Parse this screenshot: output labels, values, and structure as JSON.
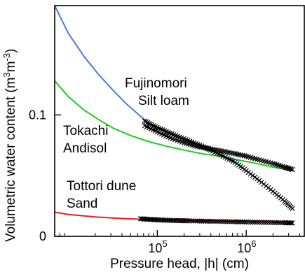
{
  "chart_data": {
    "type": "line",
    "title": "",
    "xlabel": "Pressure head, |h| (cm)",
    "ylabel": "Volumetric water content (m3m-3)",
    "ylabel_parts": {
      "main": "Volumetric water content (m",
      "sup1": "3",
      "mid": "m",
      "sup2": "-3",
      "end": ")"
    },
    "xscale": "log",
    "xlim": [
      7000,
      4500000
    ],
    "ylim": [
      0,
      0.19
    ],
    "xticks": [
      {
        "value": 100000,
        "base": "10",
        "exp": "5"
      },
      {
        "value": 1000000,
        "base": "10",
        "exp": "6"
      }
    ],
    "yticks": [
      {
        "value": 0,
        "label": "0"
      },
      {
        "value": 0.1,
        "label": "0.1"
      }
    ],
    "grid": false,
    "annotations": [
      {
        "id": "fujinomori-name",
        "text": "Fujinomori"
      },
      {
        "id": "fujinomori-texture",
        "text": "Silt loam"
      },
      {
        "id": "tokachi-name",
        "text": "Tokachi"
      },
      {
        "id": "tokachi-texture",
        "text": "Andisol"
      },
      {
        "id": "tottori-name",
        "text": "Tottori dune"
      },
      {
        "id": "tottori-texture",
        "text": "Sand"
      }
    ],
    "series": [
      {
        "kind": "curve",
        "color": "#4a78e0",
        "x": [
          7000,
          10000,
          15000,
          22000,
          32000,
          45000,
          62000,
          75000
        ],
        "y": [
          0.19,
          0.167,
          0.148,
          0.133,
          0.12,
          0.109,
          0.1,
          0.095
        ]
      },
      {
        "kind": "curve",
        "color": "#22cc22",
        "x": [
          7000,
          10000,
          15000,
          22000,
          32000,
          50000,
          80000,
          130000,
          200000,
          320000,
          500000,
          800000,
          1300000,
          2000000,
          3300000
        ],
        "y": [
          0.128,
          0.115,
          0.104,
          0.096,
          0.089,
          0.083,
          0.078,
          0.074,
          0.071,
          0.068,
          0.066,
          0.063,
          0.06,
          0.057,
          0.054
        ]
      },
      {
        "kind": "curve",
        "color": "#e02020",
        "x": [
          7000,
          10000,
          20000,
          40000,
          70000,
          150000,
          400000,
          1000000,
          3300000
        ],
        "y": [
          0.02,
          0.018,
          0.016,
          0.0147,
          0.014,
          0.0135,
          0.0128,
          0.0122,
          0.0115
        ]
      },
      {
        "kind": "markers",
        "color": "#000000",
        "x": [
          72000,
          90000,
          120000,
          160000,
          220000,
          300000,
          400000,
          550000,
          750000,
          1000000,
          1400000,
          2000000,
          2700000,
          3300000
        ],
        "y": [
          0.095,
          0.091,
          0.087,
          0.083,
          0.079,
          0.075,
          0.071,
          0.066,
          0.061,
          0.054,
          0.046,
          0.037,
          0.029,
          0.023
        ]
      },
      {
        "kind": "markers",
        "color": "#000000",
        "x": [
          72000,
          100000,
          140000,
          200000,
          280000,
          400000,
          550000,
          750000,
          1000000,
          1400000,
          2000000,
          2700000,
          3300000
        ],
        "y": [
          0.091,
          0.086,
          0.081,
          0.077,
          0.074,
          0.072,
          0.07,
          0.068,
          0.066,
          0.063,
          0.06,
          0.057,
          0.055
        ]
      },
      {
        "kind": "markers",
        "color": "#000000",
        "x": [
          65000,
          80000,
          100000,
          130000,
          170000,
          220000,
          300000,
          400000,
          550000,
          750000,
          1000000,
          1400000,
          2000000,
          2700000,
          3300000
        ],
        "y": [
          0.0145,
          0.014,
          0.0136,
          0.0132,
          0.013,
          0.0128,
          0.0126,
          0.0124,
          0.0122,
          0.012,
          0.0118,
          0.0116,
          0.0114,
          0.0112,
          0.011
        ]
      }
    ]
  }
}
